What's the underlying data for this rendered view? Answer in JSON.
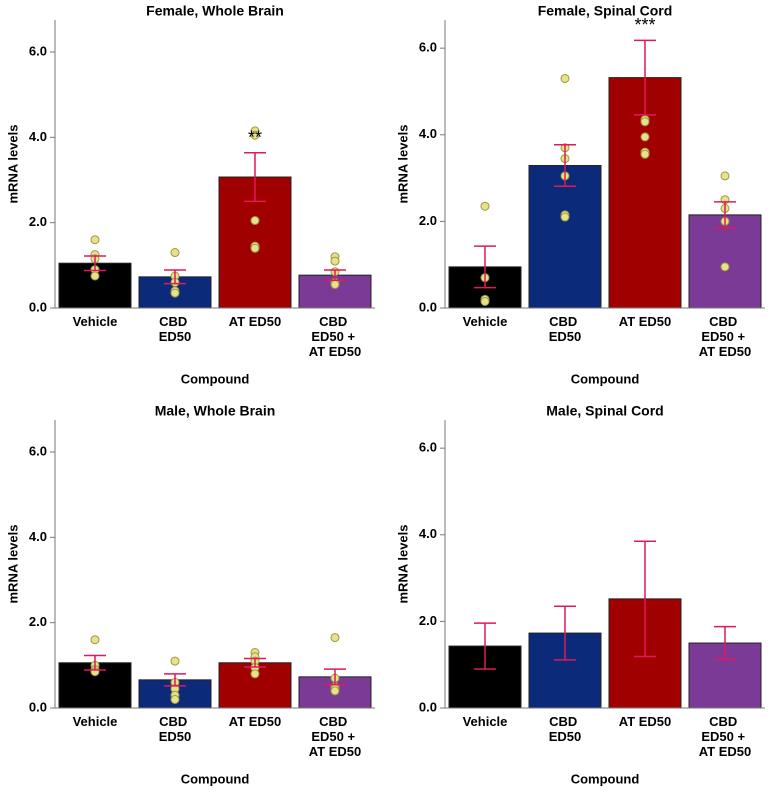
{
  "chart_data": [
    {
      "type": "bar",
      "title": "Female, Whole Brain",
      "x_label": "Compound",
      "y_label": "mRNA levels",
      "categories": [
        "Vehicle",
        "CBD ED50",
        "AT ED50",
        "CBD ED50 + AT ED50"
      ],
      "values": [
        1.05,
        0.73,
        3.07,
        0.77
      ],
      "errors": [
        0.17,
        0.16,
        0.57,
        0.12
      ],
      "colors": [
        "#000000",
        "#0c2a7a",
        "#a00000",
        "#7a3a96"
      ],
      "points": [
        [
          1.6,
          1.25,
          1.15,
          0.9,
          0.75
        ],
        [
          1.3,
          0.75,
          0.6,
          0.4,
          0.35
        ],
        [
          4.15,
          4.05,
          2.05,
          1.45,
          1.4
        ],
        [
          1.2,
          1.1,
          0.85,
          0.6,
          0.55
        ]
      ],
      "annotations": [
        {
          "text": "**",
          "x": "AT ED50"
        }
      ],
      "ylim": [
        0,
        6.75
      ],
      "yticks": [
        {
          "value": 0,
          "label": "0.0"
        },
        {
          "value": 2,
          "label": "2.0"
        },
        {
          "value": 4,
          "label": "4.0"
        },
        {
          "value": 6,
          "label": "6.0"
        }
      ]
    },
    {
      "type": "bar",
      "title": "Female, Spinal Cord",
      "x_label": "Compound",
      "y_label": "mRNA levels",
      "categories": [
        "Vehicle",
        "CBD ED50",
        "AT ED50",
        "CBD ED50 + AT ED50"
      ],
      "values": [
        0.95,
        3.29,
        5.32,
        2.15
      ],
      "errors": [
        0.48,
        0.48,
        0.86,
        0.3
      ],
      "colors": [
        "#000000",
        "#0c2a7a",
        "#a00000",
        "#7a3a96"
      ],
      "points": [
        [
          2.35,
          0.7,
          0.2,
          0.15
        ],
        [
          5.3,
          3.7,
          3.45,
          3.05,
          2.15,
          2.1
        ],
        [
          4.35,
          4.3,
          3.95,
          3.6,
          3.55
        ],
        [
          3.05,
          2.5,
          2.3,
          2.0,
          0.95
        ]
      ],
      "annotations": [
        {
          "text": "***",
          "x": "AT ED50"
        }
      ],
      "ylim": [
        0,
        6.65
      ],
      "yticks": [
        {
          "value": 0,
          "label": "0.0"
        },
        {
          "value": 2,
          "label": "2.0"
        },
        {
          "value": 4,
          "label": "4.0"
        },
        {
          "value": 6,
          "label": "6.0"
        }
      ]
    },
    {
      "type": "bar",
      "title": "Male, Whole Brain",
      "x_label": "Compound",
      "y_label": "mRNA levels",
      "categories": [
        "Vehicle",
        "CBD ED50",
        "AT ED50",
        "CBD ED50 + AT ED50"
      ],
      "values": [
        1.06,
        0.66,
        1.06,
        0.73
      ],
      "errors": [
        0.17,
        0.14,
        0.1,
        0.18
      ],
      "colors": [
        "#000000",
        "#0c2a7a",
        "#a00000",
        "#7a3a96"
      ],
      "points": [
        [
          1.6,
          1.0,
          0.9,
          0.85
        ],
        [
          1.1,
          0.6,
          0.45,
          0.3,
          0.2
        ],
        [
          1.3,
          1.2,
          1.1,
          0.95,
          0.8
        ],
        [
          1.65,
          0.7,
          0.5,
          0.45,
          0.4
        ]
      ],
      "ylim": [
        0,
        6.75
      ],
      "yticks": [
        {
          "value": 0,
          "label": "0.0"
        },
        {
          "value": 2,
          "label": "2.0"
        },
        {
          "value": 4,
          "label": "4.0"
        },
        {
          "value": 6,
          "label": "6.0"
        }
      ]
    },
    {
      "type": "bar",
      "title": "Male, Spinal Cord",
      "x_label": "Compound",
      "y_label": "mRNA levels",
      "categories": [
        "Vehicle",
        "CBD ED50",
        "AT ED50",
        "CBD ED50 + AT ED50"
      ],
      "values": [
        1.43,
        1.73,
        2.52,
        1.5
      ],
      "errors": [
        0.53,
        0.62,
        1.33,
        0.38
      ],
      "colors": [
        "#000000",
        "#0c2a7a",
        "#a00000",
        "#7a3a96"
      ],
      "ylim": [
        0,
        6.65
      ],
      "yticks": [
        {
          "value": 0,
          "label": "0.0"
        },
        {
          "value": 2,
          "label": "2.0"
        },
        {
          "value": 4,
          "label": "4.0"
        },
        {
          "value": 6,
          "label": "6.0"
        }
      ]
    }
  ]
}
